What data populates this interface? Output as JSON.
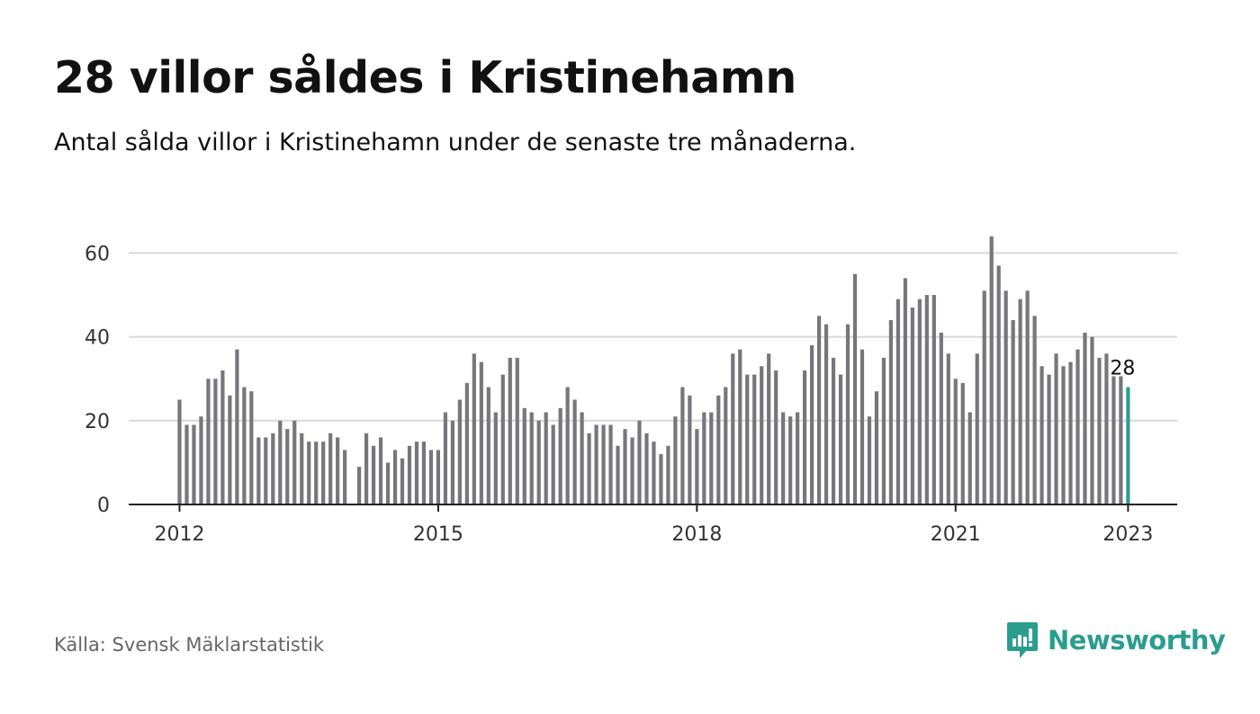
{
  "title": "28 villor såldes i Kristinehamn",
  "subtitle": "Antal sålda villor i Kristinehamn under de senaste tre månaderna.",
  "source": "Källa: Svensk Mäklarstatistik",
  "brand": {
    "name": "Newsworthy",
    "icon": "newsworthy-logo-icon"
  },
  "colors": {
    "bar": "#76767c",
    "highlight": "#2a9d8f",
    "grid": "#d9d9d9",
    "axis": "#222222",
    "tick_text": "#333333"
  },
  "chart_data": {
    "type": "bar",
    "start": "2012-01",
    "x_ticks": [
      "2012",
      "2015",
      "2018",
      "2021",
      "2023"
    ],
    "y_ticks": [
      0,
      20,
      40,
      60
    ],
    "ylim": [
      0,
      65
    ],
    "grid": true,
    "highlight_label": "28",
    "values": [
      25,
      19,
      19,
      21,
      30,
      30,
      32,
      26,
      37,
      28,
      27,
      16,
      16,
      17,
      20,
      18,
      20,
      17,
      15,
      15,
      15,
      17,
      16,
      13,
      0,
      9,
      17,
      14,
      16,
      10,
      13,
      11,
      14,
      15,
      15,
      13,
      13,
      22,
      20,
      25,
      29,
      36,
      34,
      28,
      22,
      31,
      35,
      35,
      23,
      22,
      20,
      22,
      19,
      23,
      28,
      25,
      22,
      17,
      19,
      19,
      19,
      14,
      18,
      16,
      20,
      17,
      15,
      12,
      14,
      21,
      28,
      26,
      18,
      22,
      22,
      26,
      28,
      36,
      37,
      31,
      31,
      33,
      36,
      32,
      22,
      21,
      22,
      32,
      38,
      45,
      43,
      35,
      31,
      43,
      55,
      37,
      21,
      27,
      35,
      44,
      49,
      54,
      47,
      49,
      50,
      50,
      41,
      36,
      30,
      29,
      22,
      36,
      51,
      64,
      57,
      51,
      44,
      49,
      51,
      45,
      33,
      31,
      36,
      33,
      34,
      37,
      41,
      40,
      35,
      36,
      31,
      31,
      28
    ]
  }
}
